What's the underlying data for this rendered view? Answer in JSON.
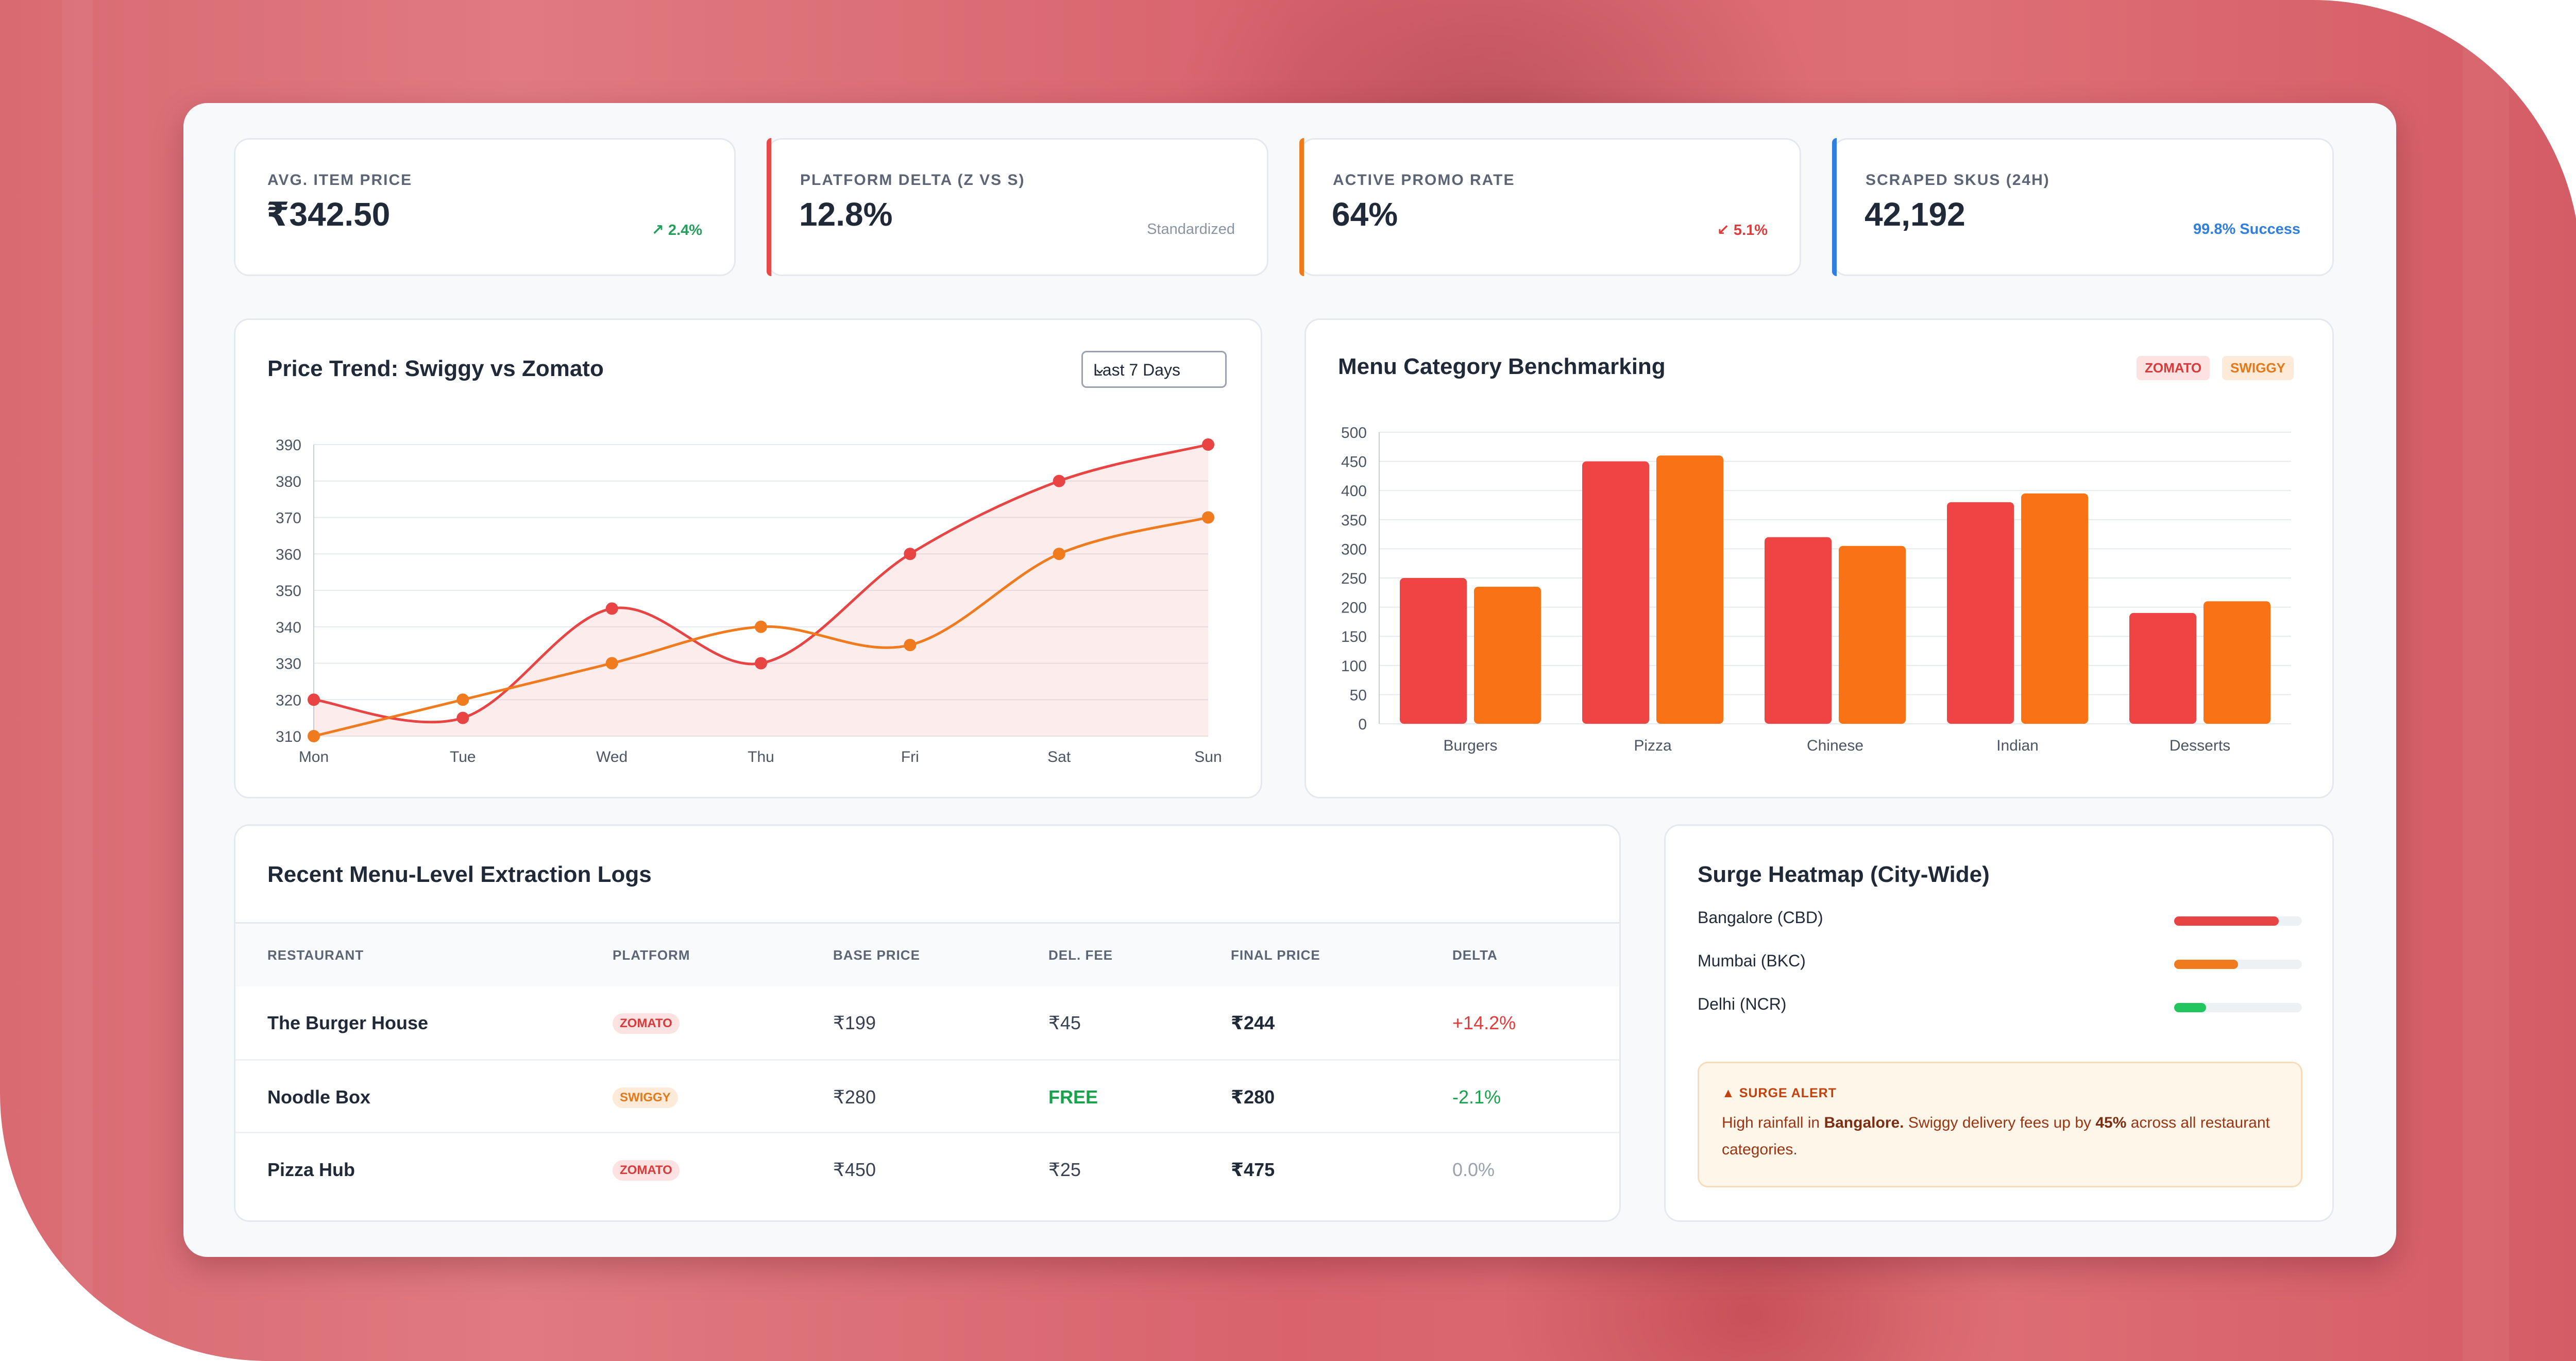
{
  "kpis": [
    {
      "label": "AVG. ITEM PRICE",
      "value": "₹342.50",
      "note": "↗ 2.4%",
      "note_color": "#22a05a",
      "accent": ""
    },
    {
      "label": "PLATFORM DELTA (Z VS S)",
      "value": "12.8%",
      "note": "Standardized",
      "note_color": "#8a94a3",
      "accent": "#e84a4a"
    },
    {
      "label": "ACTIVE PROMO RATE",
      "value": "64%",
      "note": "↙ 5.1%",
      "note_color": "#e23b3b",
      "accent": "#f07a1e"
    },
    {
      "label": "SCRAPED SKUS (24H)",
      "value": "42,192",
      "note": "99.8% Success",
      "note_color": "#2f7fe0",
      "accent": "#2f7fe0"
    }
  ],
  "price_trend": {
    "title": "Price Trend: Swiggy vs Zomato",
    "range_select": "Last 7 Days"
  },
  "category_chart": {
    "title": "Menu Category Benchmarking",
    "legend": [
      "ZOMATO",
      "SWIGGY"
    ]
  },
  "chart_data": [
    {
      "type": "line",
      "title": "Price Trend: Swiggy vs Zomato",
      "x": [
        "Mon",
        "Tue",
        "Wed",
        "Thu",
        "Fri",
        "Sat",
        "Sun"
      ],
      "ylim": [
        310,
        390
      ],
      "yticks": [
        310,
        320,
        330,
        340,
        350,
        360,
        370,
        380,
        390
      ],
      "grid": true,
      "series": [
        {
          "values": [
            320,
            315,
            345,
            330,
            360,
            380,
            390
          ],
          "color": "#e84444",
          "fill": true
        },
        {
          "values": [
            310,
            320,
            330,
            340,
            335,
            360,
            370
          ],
          "color": "#f07a1e",
          "fill": false
        }
      ]
    },
    {
      "type": "bar",
      "title": "Menu Category Benchmarking",
      "categories": [
        "Burgers",
        "Pizza",
        "Chinese",
        "Indian",
        "Desserts"
      ],
      "ylim": [
        0,
        500
      ],
      "yticks": [
        0,
        50,
        100,
        150,
        200,
        250,
        300,
        350,
        400,
        450,
        500
      ],
      "grid": true,
      "legend_position": "top-right",
      "series": [
        {
          "name": "ZOMATO",
          "values": [
            250,
            450,
            320,
            380,
            190
          ],
          "color": "#ef4444"
        },
        {
          "name": "SWIGGY",
          "values": [
            235,
            460,
            305,
            395,
            210
          ],
          "color": "#f97316"
        }
      ]
    }
  ],
  "logs": {
    "title": "Recent Menu-Level Extraction Logs",
    "headers": [
      "RESTAURANT",
      "PLATFORM",
      "BASE PRICE",
      "DEL. FEE",
      "FINAL PRICE",
      "DELTA"
    ],
    "rows": [
      {
        "restaurant": "The Burger House",
        "platform": "ZOMATO",
        "base": "₹199",
        "fee": "₹45",
        "final": "₹244",
        "delta": "+14.2%"
      },
      {
        "restaurant": "Noodle Box",
        "platform": "SWIGGY",
        "base": "₹280",
        "fee": "FREE",
        "final": "₹280",
        "delta": "-2.1%"
      },
      {
        "restaurant": "Pizza Hub",
        "platform": "ZOMATO",
        "base": "₹450",
        "fee": "₹25",
        "final": "₹475",
        "delta": "0.0%"
      }
    ]
  },
  "heatmap": {
    "title": "Surge Heatmap (City-Wide)",
    "cities": [
      {
        "name": "Bangalore (CBD)",
        "level": 0.82,
        "color": "#e84444"
      },
      {
        "name": "Mumbai (BKC)",
        "level": 0.5,
        "color": "#f07a1e"
      },
      {
        "name": "Delhi (NCR)",
        "level": 0.25,
        "color": "#22c55e"
      }
    ],
    "alert": {
      "title": "SURGE ALERT",
      "text_1": "High rainfall in ",
      "text_2": "Bangalore.",
      "text_3": " Swiggy delivery fees up by ",
      "text_4": "45%",
      "text_5": " across all restaurant categories."
    }
  }
}
